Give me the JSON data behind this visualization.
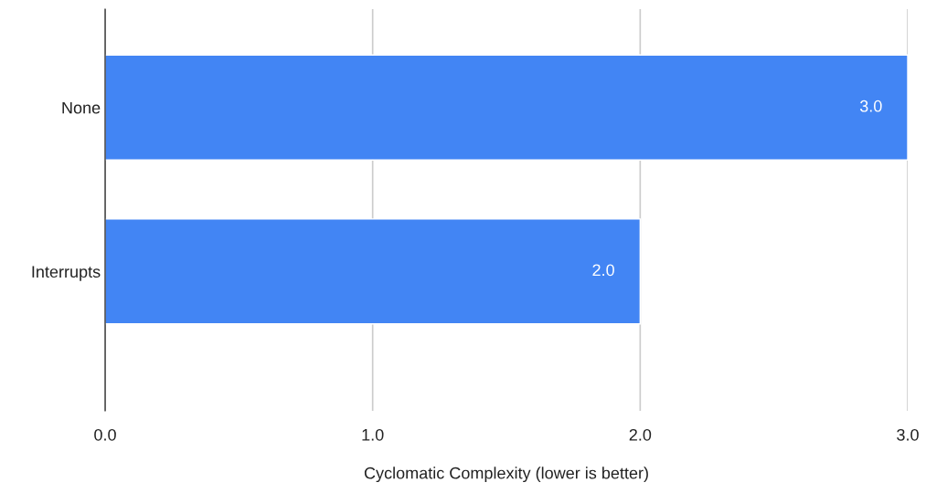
{
  "chart_data": {
    "type": "bar",
    "orientation": "horizontal",
    "xlabel": "Cyclomatic Complexity (lower is better)",
    "categories": [
      "None",
      "Interrupts"
    ],
    "series": [
      {
        "color": "#4285f4",
        "values": [
          3.0,
          2.0
        ],
        "value_labels": [
          "3.0",
          "2.0"
        ]
      }
    ],
    "xlim": [
      0,
      3
    ],
    "xticks": [
      {
        "value": 0,
        "label": "0.0"
      },
      {
        "value": 1,
        "label": "1.0"
      },
      {
        "value": 2,
        "label": "2.0"
      },
      {
        "value": 3,
        "label": "3.0"
      }
    ],
    "grid": "x",
    "legend": false
  }
}
